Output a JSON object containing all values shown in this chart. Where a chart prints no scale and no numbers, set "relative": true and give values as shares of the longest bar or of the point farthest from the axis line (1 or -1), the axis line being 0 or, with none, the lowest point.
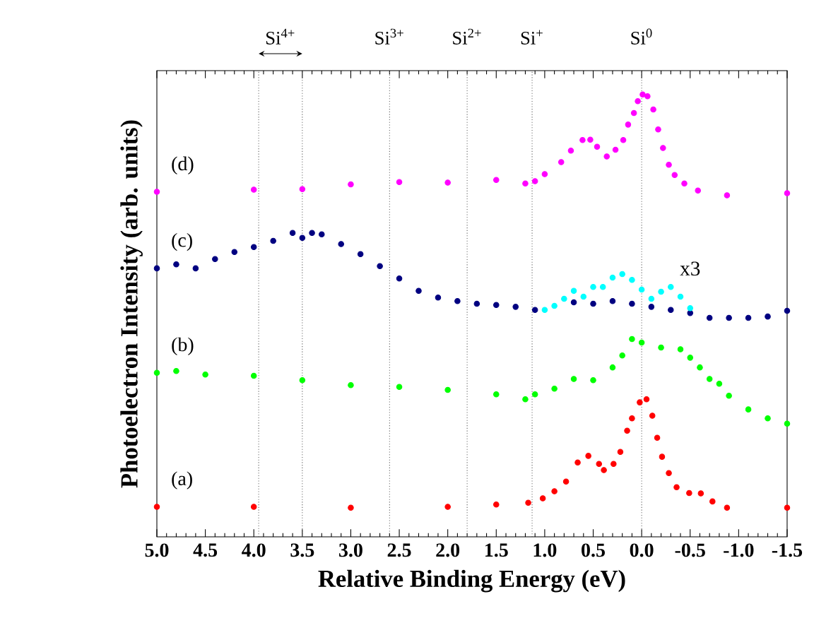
{
  "chart_data": {
    "type": "scatter",
    "relative": true,
    "marker": "circle",
    "xlabel": "Relative Binding Energy (eV)",
    "ylabel": "Photoelectron Intensity (arb. units)",
    "xlim": [
      5,
      -1.5
    ],
    "xticks": [
      {
        "value": 5,
        "label": "5.0"
      },
      {
        "value": 4.5,
        "label": "4.5"
      },
      {
        "value": 4,
        "label": "4.0"
      },
      {
        "value": 3.5,
        "label": "3.5"
      },
      {
        "value": 3,
        "label": "3.0"
      },
      {
        "value": 2.5,
        "label": "2.5"
      },
      {
        "value": 2,
        "label": "2.0"
      },
      {
        "value": 1.5,
        "label": "1.5"
      },
      {
        "value": 1,
        "label": "1.0"
      },
      {
        "value": 0.5,
        "label": "0.5"
      },
      {
        "value": 0,
        "label": "0.0"
      },
      {
        "value": -0.5,
        "label": "-0.5"
      },
      {
        "value": -1,
        "label": "-1.0"
      },
      {
        "value": -1.5,
        "label": "-1.5"
      }
    ],
    "annotations": [
      "Si$^{4+}$"
    ],
    "ref_lines": [
      {
        "axis": "x",
        "value": 3.95,
        "line_style": "dotted"
      },
      {
        "axis": "x",
        "value": 3.5,
        "line_style": "dotted"
      },
      {
        "axis": "x",
        "value": 2.6,
        "label": "Si$^{3+}$",
        "line_style": "dotted"
      },
      {
        "axis": "x",
        "value": 1.8,
        "label": "Si$^{2+}$",
        "line_style": "dotted"
      },
      {
        "axis": "x",
        "value": 1.13,
        "label": "Si$^{+}$",
        "line_style": "dotted"
      },
      {
        "axis": "x",
        "value": 0,
        "label": "Si$^{0}$",
        "line_style": "dotted"
      }
    ],
    "series": [
      {
        "name": "(a)",
        "color": "#ff0000",
        "x": [
          5,
          4,
          3,
          2,
          1.5,
          1.17,
          1.02,
          0.9,
          0.78,
          0.66,
          0.55,
          0.44,
          0.39,
          0.29,
          0.22,
          0.15,
          0.1,
          0.02,
          -0.05,
          -0.11,
          -0.16,
          -0.21,
          -0.28,
          -0.36,
          -0.49,
          -0.61,
          -0.73,
          -0.88,
          -1.5
        ],
        "values": [
          0.068,
          0.068,
          0.066,
          0.068,
          0.073,
          0.077,
          0.087,
          0.103,
          0.125,
          0.168,
          0.183,
          0.165,
          0.151,
          0.165,
          0.192,
          0.24,
          0.268,
          0.304,
          0.311,
          0.274,
          0.224,
          0.181,
          0.144,
          0.112,
          0.099,
          0.098,
          0.08,
          0.066,
          0.066
        ]
      },
      {
        "name": "(b)",
        "color": "#00ff00",
        "x": [
          5,
          4.8,
          4.5,
          4,
          3.5,
          3,
          2.5,
          2,
          1.5,
          1.2,
          1.1,
          0.9,
          0.7,
          0.5,
          0.3,
          0.2,
          0.1,
          0,
          -0.2,
          -0.4,
          -0.5,
          -0.6,
          -0.7,
          -0.8,
          -0.9,
          -1.1,
          -1.3,
          -1.5
        ],
        "values": [
          0.371,
          0.375,
          0.367,
          0.364,
          0.354,
          0.343,
          0.339,
          0.332,
          0.322,
          0.311,
          0.322,
          0.335,
          0.357,
          0.354,
          0.383,
          0.41,
          0.447,
          0.439,
          0.428,
          0.424,
          0.405,
          0.383,
          0.357,
          0.346,
          0.319,
          0.288,
          0.268,
          0.256
        ]
      },
      {
        "name": "(c)",
        "color": "#000080",
        "x": [
          5,
          4.8,
          4.6,
          4.4,
          4.2,
          4,
          3.8,
          3.6,
          3.5,
          3.4,
          3.3,
          3.1,
          2.9,
          2.7,
          2.5,
          2.3,
          2.1,
          1.9,
          1.7,
          1.5,
          1.3,
          1.1,
          0.9,
          0.7,
          0.5,
          0.3,
          0.1,
          -0.1,
          -0.3,
          -0.5,
          -0.7,
          -0.9,
          -1.1,
          -1.3,
          -1.5
        ],
        "values": [
          0.607,
          0.616,
          0.607,
          0.628,
          0.644,
          0.655,
          0.669,
          0.687,
          0.676,
          0.687,
          0.684,
          0.662,
          0.639,
          0.612,
          0.584,
          0.556,
          0.541,
          0.533,
          0.527,
          0.524,
          0.52,
          0.513,
          null,
          0.53,
          0.527,
          0.533,
          0.527,
          0.52,
          0.513,
          0.506,
          0.495,
          0.495,
          0.495,
          0.498,
          0.511
        ]
      },
      {
        "name": "x3",
        "color": "#00ffff",
        "x": [
          1,
          0.9,
          0.8,
          0.7,
          0.6,
          0.5,
          0.4,
          0.3,
          0.2,
          0.1,
          0,
          -0.1,
          -0.2,
          -0.3,
          -0.4,
          -0.5
        ],
        "values": [
          0.513,
          0.522,
          0.538,
          0.556,
          0.543,
          0.565,
          0.565,
          0.586,
          0.594,
          0.581,
          0.559,
          0.538,
          0.554,
          0.565,
          0.543,
          0.517
        ]
      },
      {
        "name": "(d)",
        "color": "#ff00ff",
        "x": [
          5,
          4,
          3.5,
          3,
          2.5,
          2,
          1.5,
          1.2,
          1.1,
          1,
          0.83,
          0.73,
          0.61,
          0.53,
          0.46,
          0.36,
          0.27,
          0.19,
          0.14,
          0.08,
          0.04,
          -0.01,
          -0.06,
          -0.12,
          -0.17,
          -0.22,
          -0.28,
          -0.34,
          -0.44,
          -0.58,
          -0.88,
          -1.5
        ],
        "values": [
          0.78,
          0.785,
          0.786,
          0.797,
          0.802,
          0.801,
          0.807,
          0.799,
          0.804,
          0.82,
          0.847,
          0.873,
          0.897,
          0.898,
          0.882,
          0.86,
          0.875,
          0.897,
          0.932,
          0.958,
          0.985,
          1,
          0.996,
          0.966,
          0.921,
          0.879,
          0.841,
          0.818,
          0.799,
          0.783,
          0.772,
          0.777
        ]
      }
    ]
  }
}
